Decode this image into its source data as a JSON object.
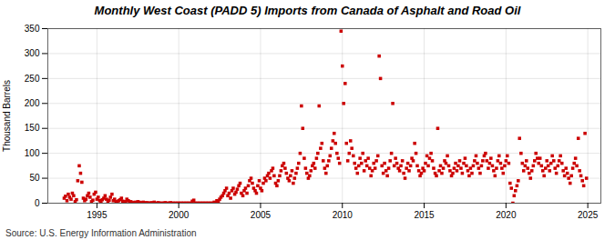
{
  "chart_data": {
    "type": "scatter",
    "title": "Monthly West Coast (PADD 5) Imports from Canada of Asphalt and Road Oil",
    "y_label": "Thousand Barrels",
    "source": "Source: U.S. Energy Information Administration",
    "color": "#cc0000",
    "marker": "square",
    "grid": true,
    "xlim": [
      1992.0,
      2025.8
    ],
    "ylim": [
      0,
      350
    ],
    "xticks": [
      1995,
      2000,
      2005,
      2010,
      2015,
      2020,
      2025
    ],
    "yticks": [
      0,
      50,
      100,
      150,
      200,
      250,
      300,
      350
    ],
    "x": [
      1993.0,
      1993.08,
      1993.17,
      1993.25,
      1993.33,
      1993.42,
      1993.5,
      1993.58,
      1993.67,
      1993.75,
      1993.83,
      1993.92,
      1994.0,
      1994.08,
      1994.17,
      1994.25,
      1994.33,
      1994.42,
      1994.5,
      1994.58,
      1994.67,
      1994.75,
      1994.83,
      1994.92,
      1995.0,
      1995.08,
      1995.17,
      1995.25,
      1995.33,
      1995.42,
      1995.5,
      1995.58,
      1995.67,
      1995.75,
      1995.83,
      1995.92,
      1996.0,
      1996.08,
      1996.17,
      1996.25,
      1996.33,
      1996.42,
      1996.5,
      1996.58,
      1996.67,
      1996.75,
      1996.83,
      1996.92,
      1997.0,
      1997.08,
      1997.17,
      1997.25,
      1997.33,
      1997.42,
      1997.5,
      1997.58,
      1997.67,
      1997.75,
      1997.83,
      1997.92,
      1998.0,
      1998.08,
      1998.17,
      1998.25,
      1998.33,
      1998.42,
      1998.5,
      1998.58,
      1998.67,
      1998.75,
      1998.83,
      1998.92,
      1999.0,
      1999.08,
      1999.17,
      1999.25,
      1999.33,
      1999.42,
      1999.5,
      1999.58,
      1999.67,
      1999.75,
      1999.83,
      1999.92,
      2000.0,
      2000.08,
      2000.17,
      2000.25,
      2000.33,
      2000.42,
      2000.5,
      2000.58,
      2000.67,
      2000.75,
      2000.83,
      2000.92,
      2001.0,
      2001.08,
      2001.17,
      2001.25,
      2001.33,
      2001.42,
      2001.5,
      2001.58,
      2001.67,
      2001.75,
      2001.83,
      2001.92,
      2002.0,
      2002.08,
      2002.17,
      2002.25,
      2002.33,
      2002.42,
      2002.5,
      2002.58,
      2002.67,
      2002.75,
      2002.83,
      2002.92,
      2003.0,
      2003.08,
      2003.17,
      2003.25,
      2003.33,
      2003.42,
      2003.5,
      2003.58,
      2003.67,
      2003.75,
      2003.83,
      2003.92,
      2004.0,
      2004.08,
      2004.17,
      2004.25,
      2004.33,
      2004.42,
      2004.5,
      2004.58,
      2004.67,
      2004.75,
      2004.83,
      2004.92,
      2005.0,
      2005.08,
      2005.17,
      2005.25,
      2005.33,
      2005.42,
      2005.5,
      2005.58,
      2005.67,
      2005.75,
      2005.83,
      2005.92,
      2006.0,
      2006.08,
      2006.17,
      2006.25,
      2006.33,
      2006.42,
      2006.5,
      2006.58,
      2006.67,
      2006.75,
      2006.83,
      2006.92,
      2007.0,
      2007.08,
      2007.17,
      2007.25,
      2007.33,
      2007.42,
      2007.5,
      2007.58,
      2007.67,
      2007.75,
      2007.83,
      2007.92,
      2008.0,
      2008.08,
      2008.17,
      2008.25,
      2008.33,
      2008.42,
      2008.5,
      2008.58,
      2008.67,
      2008.75,
      2008.83,
      2008.92,
      2009.0,
      2009.08,
      2009.17,
      2009.25,
      2009.33,
      2009.42,
      2009.5,
      2009.58,
      2009.67,
      2009.75,
      2009.83,
      2009.92,
      2010.0,
      2010.08,
      2010.17,
      2010.25,
      2010.33,
      2010.42,
      2010.5,
      2010.58,
      2010.67,
      2010.75,
      2010.83,
      2010.92,
      2011.0,
      2011.08,
      2011.17,
      2011.25,
      2011.33,
      2011.42,
      2011.5,
      2011.58,
      2011.67,
      2011.75,
      2011.83,
      2011.92,
      2012.0,
      2012.08,
      2012.17,
      2012.25,
      2012.33,
      2012.42,
      2012.5,
      2012.58,
      2012.67,
      2012.75,
      2012.83,
      2012.92,
      2013.0,
      2013.08,
      2013.17,
      2013.25,
      2013.33,
      2013.42,
      2013.5,
      2013.58,
      2013.67,
      2013.75,
      2013.83,
      2013.92,
      2014.0,
      2014.08,
      2014.17,
      2014.25,
      2014.33,
      2014.42,
      2014.5,
      2014.58,
      2014.67,
      2014.75,
      2014.83,
      2014.92,
      2015.0,
      2015.08,
      2015.17,
      2015.25,
      2015.33,
      2015.42,
      2015.5,
      2015.58,
      2015.67,
      2015.75,
      2015.83,
      2015.92,
      2016.0,
      2016.08,
      2016.17,
      2016.25,
      2016.33,
      2016.42,
      2016.5,
      2016.58,
      2016.67,
      2016.75,
      2016.83,
      2016.92,
      2017.0,
      2017.08,
      2017.17,
      2017.25,
      2017.33,
      2017.42,
      2017.5,
      2017.58,
      2017.67,
      2017.75,
      2017.83,
      2017.92,
      2018.0,
      2018.08,
      2018.17,
      2018.25,
      2018.33,
      2018.42,
      2018.5,
      2018.58,
      2018.67,
      2018.75,
      2018.83,
      2018.92,
      2019.0,
      2019.08,
      2019.17,
      2019.25,
      2019.33,
      2019.42,
      2019.5,
      2019.58,
      2019.67,
      2019.75,
      2019.83,
      2019.92,
      2020.0,
      2020.08,
      2020.17,
      2020.25,
      2020.33,
      2020.42,
      2020.5,
      2020.58,
      2020.67,
      2020.75,
      2020.83,
      2020.92,
      2021.0,
      2021.08,
      2021.17,
      2021.25,
      2021.33,
      2021.42,
      2021.5,
      2021.58,
      2021.67,
      2021.75,
      2021.83,
      2021.92,
      2022.0,
      2022.08,
      2022.17,
      2022.25,
      2022.33,
      2022.42,
      2022.5,
      2022.58,
      2022.67,
      2022.75,
      2022.83,
      2022.92,
      2023.0,
      2023.08,
      2023.17,
      2023.25,
      2023.33,
      2023.42,
      2023.5,
      2023.58,
      2023.67,
      2023.75,
      2023.83,
      2023.92,
      2024.0,
      2024.08,
      2024.17,
      2024.25,
      2024.33,
      2024.42,
      2024.5,
      2024.58,
      2024.67,
      2024.75,
      2024.83,
      2024.92
    ],
    "values": [
      10,
      14,
      5,
      18,
      12,
      8,
      20,
      15,
      3,
      7,
      45,
      75,
      60,
      42,
      10,
      5,
      8,
      15,
      20,
      12,
      3,
      6,
      18,
      22,
      8,
      12,
      5,
      3,
      7,
      10,
      15,
      8,
      4,
      6,
      12,
      18,
      5,
      8,
      3,
      2,
      5,
      7,
      10,
      4,
      2,
      3,
      8,
      5,
      2,
      3,
      1,
      0,
      2,
      1,
      3,
      2,
      1,
      0,
      2,
      1,
      0,
      1,
      0,
      0,
      1,
      0,
      2,
      0,
      0,
      1,
      0,
      0,
      0,
      0,
      1,
      0,
      0,
      0,
      1,
      0,
      0,
      0,
      0,
      0,
      0,
      0,
      0,
      0,
      0,
      0,
      0,
      0,
      0,
      0,
      4,
      6,
      0,
      0,
      0,
      0,
      0,
      0,
      0,
      0,
      0,
      0,
      0,
      0,
      0,
      0,
      2,
      0,
      5,
      3,
      8,
      12,
      15,
      20,
      25,
      30,
      15,
      20,
      10,
      25,
      30,
      18,
      22,
      28,
      35,
      40,
      20,
      15,
      25,
      30,
      20,
      35,
      45,
      50,
      40,
      30,
      25,
      20,
      35,
      45,
      30,
      25,
      40,
      50,
      45,
      55,
      60,
      50,
      65,
      70,
      55,
      40,
      35,
      45,
      55,
      65,
      75,
      80,
      70,
      60,
      50,
      45,
      55,
      65,
      40,
      50,
      60,
      70,
      80,
      100,
      195,
      150,
      90,
      70,
      60,
      50,
      55,
      65,
      75,
      80,
      70,
      90,
      100,
      195,
      110,
      120,
      85,
      70,
      60,
      75,
      85,
      95,
      110,
      125,
      140,
      120,
      100,
      90,
      80,
      345,
      275,
      200,
      240,
      120,
      85,
      100,
      125,
      110,
      95,
      80,
      70,
      60,
      75,
      90,
      80,
      100,
      65,
      85,
      75,
      90,
      70,
      55,
      65,
      80,
      70,
      85,
      95,
      295,
      250,
      75,
      60,
      80,
      65,
      55,
      70,
      85,
      100,
      200,
      75,
      90,
      80,
      70,
      65,
      75,
      85,
      60,
      50,
      70,
      80,
      65,
      75,
      90,
      85,
      120,
      100,
      75,
      65,
      55,
      60,
      70,
      65,
      80,
      95,
      75,
      90,
      100,
      85,
      70,
      60,
      55,
      150,
      65,
      75,
      60,
      70,
      85,
      80,
      95,
      75,
      65,
      55,
      60,
      70,
      80,
      65,
      75,
      85,
      70,
      60,
      80,
      90,
      75,
      65,
      55,
      70,
      60,
      75,
      85,
      95,
      80,
      70,
      60,
      75,
      85,
      95,
      100,
      85,
      70,
      80,
      90,
      75,
      65,
      55,
      70,
      85,
      95,
      80,
      70,
      60,
      75,
      85,
      95,
      80,
      40,
      30,
      0,
      15,
      25,
      35,
      45,
      130,
      100,
      80,
      65,
      75,
      85,
      70,
      60,
      50,
      65,
      75,
      85,
      100,
      90,
      80,
      90,
      75,
      65,
      55,
      70,
      85,
      75,
      65,
      80,
      95,
      85,
      70,
      60,
      75,
      85,
      95,
      80,
      65,
      55,
      70,
      60,
      50,
      40,
      55,
      70,
      80,
      90,
      75,
      130,
      65,
      55,
      45,
      35,
      140,
      50
    ]
  }
}
